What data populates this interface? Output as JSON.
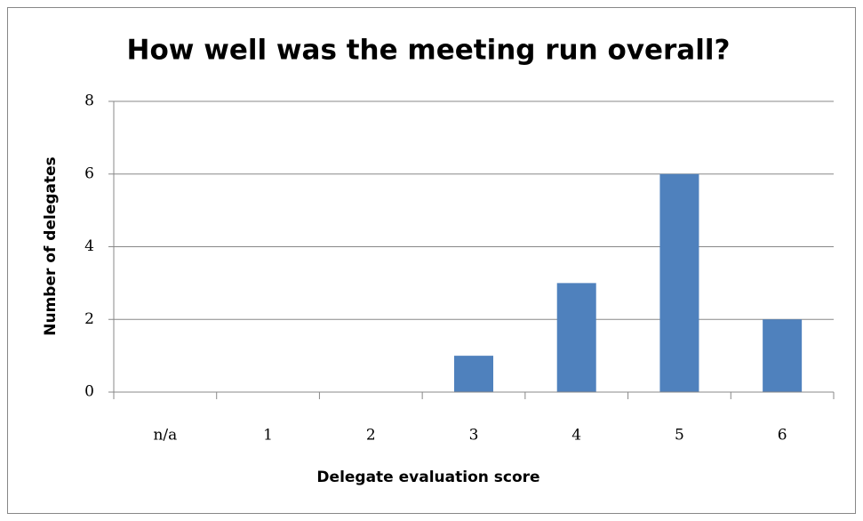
{
  "chart_data": {
    "type": "bar",
    "title": "How well was the meeting run overall?",
    "x_label": "Delegate evaluation score",
    "y_label": "Number of delegates",
    "categories": [
      "n/a",
      "1",
      "2",
      "3",
      "4",
      "5",
      "6"
    ],
    "values": [
      0,
      0,
      0,
      1,
      3,
      6,
      2
    ],
    "color": "#4f81bd",
    "ylim": [
      0,
      8
    ],
    "yticks": [
      0,
      2,
      4,
      6,
      8
    ],
    "grid": true
  }
}
